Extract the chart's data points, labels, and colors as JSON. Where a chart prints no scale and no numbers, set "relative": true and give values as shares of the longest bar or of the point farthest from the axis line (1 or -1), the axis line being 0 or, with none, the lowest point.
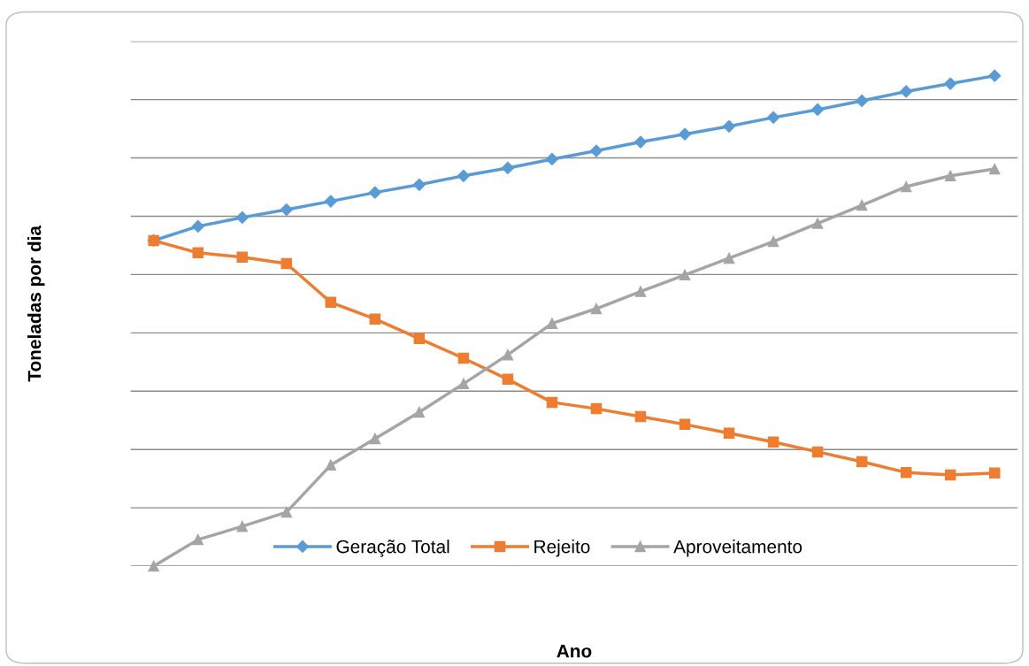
{
  "chart_data": {
    "type": "line",
    "relative": true,
    "xlabel": "Ano",
    "ylabel": "Toneladas por dia",
    "grid": "y",
    "legend": "bottom",
    "line_style": "solid",
    "categories": [
      null,
      null,
      null,
      null,
      null,
      null,
      null,
      null,
      null,
      null,
      null,
      null,
      null,
      null,
      null,
      null,
      null,
      null,
      null,
      null
    ],
    "series": [
      {
        "name": "Geração Total",
        "color": "#5b9bd5",
        "marker": "diamond",
        "values": [
          0.664,
          0.693,
          0.711,
          0.727,
          0.744,
          0.762,
          0.778,
          0.796,
          0.812,
          0.83,
          0.847,
          0.865,
          0.881,
          0.897,
          0.915,
          0.931,
          0.949,
          0.968,
          0.984,
          1.0
        ]
      },
      {
        "name": "Rejeito",
        "color": "#ed7d31",
        "marker": "square",
        "values": [
          0.664,
          0.639,
          0.63,
          0.617,
          0.538,
          0.504,
          0.464,
          0.424,
          0.381,
          0.334,
          0.321,
          0.305,
          0.289,
          0.271,
          0.253,
          0.233,
          0.213,
          0.191,
          0.186,
          0.19
        ]
      },
      {
        "name": "Aproveitamento",
        "color": "#a5a5a5",
        "marker": "triangle",
        "values": [
          0.0,
          0.054,
          0.081,
          0.11,
          0.206,
          0.26,
          0.314,
          0.372,
          0.431,
          0.495,
          0.525,
          0.56,
          0.594,
          0.628,
          0.662,
          0.699,
          0.736,
          0.774,
          0.796,
          0.81
        ]
      }
    ]
  }
}
